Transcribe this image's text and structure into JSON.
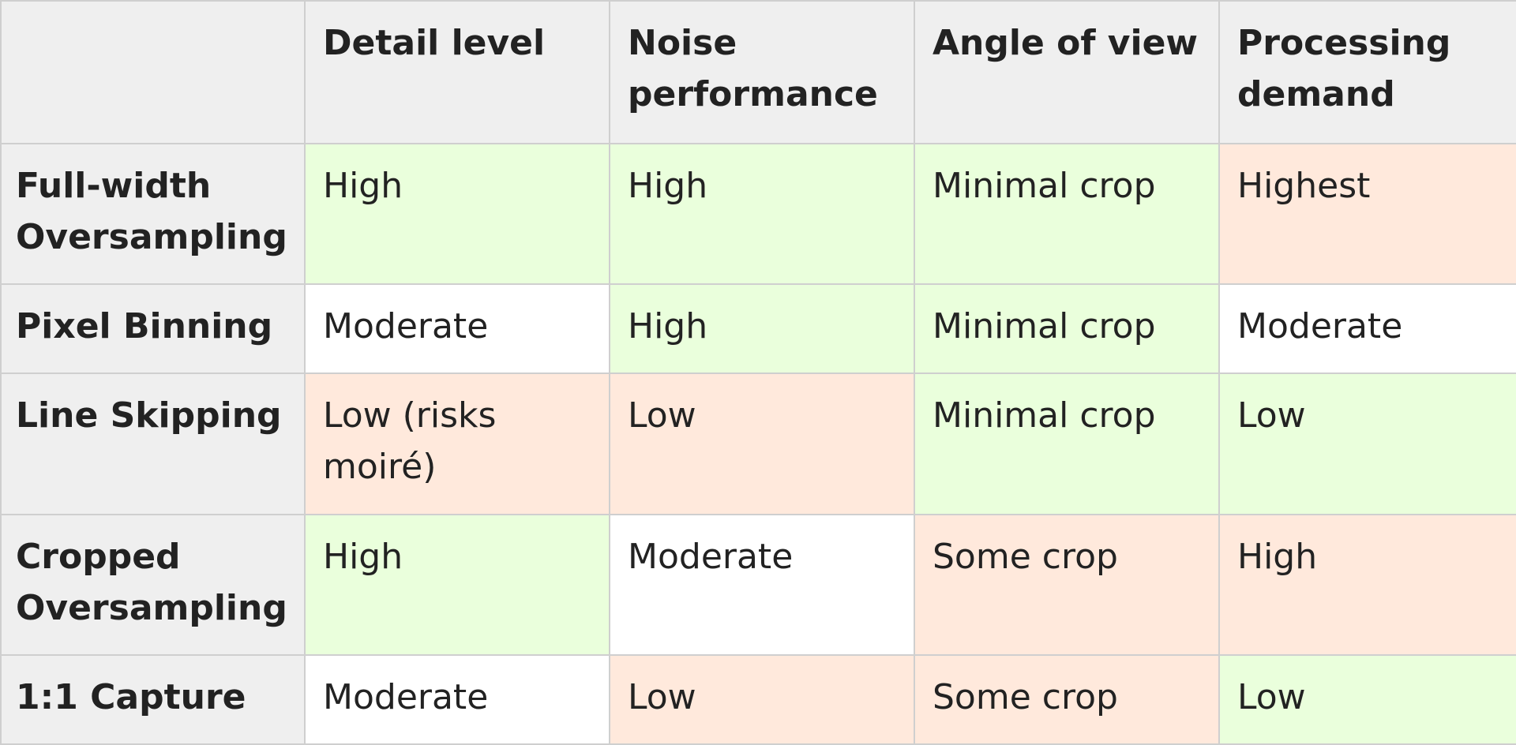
{
  "table": {
    "columns": [
      "",
      "Detail level",
      "Noise performance",
      "Angle of view",
      "Processing demand"
    ],
    "rows": [
      {
        "mode": "Full-width Oversampling",
        "detail": "High",
        "noise": "High",
        "angle": "Minimal crop",
        "processing": "Highest"
      },
      {
        "mode": "Pixel Binning",
        "detail": "Moderate",
        "noise": "High",
        "angle": "Minimal crop",
        "processing": "Moderate"
      },
      {
        "mode": "Line Skipping",
        "detail": "Low (risks moiré)",
        "noise": "Low",
        "angle": "Minimal crop",
        "processing": "Low"
      },
      {
        "mode": "Cropped Oversampling",
        "detail": "High",
        "noise": "Moderate",
        "angle": "Some crop",
        "processing": "High"
      },
      {
        "mode": "1:1 Capture",
        "detail": "Moderate",
        "noise": "Low",
        "angle": "Some crop",
        "processing": "Low"
      }
    ]
  },
  "colors": {
    "good": "#eaffdc",
    "moderate": "#ffffff",
    "poor": "#ffe9dc",
    "header": "#efefef",
    "border": "#cfcfcf"
  }
}
